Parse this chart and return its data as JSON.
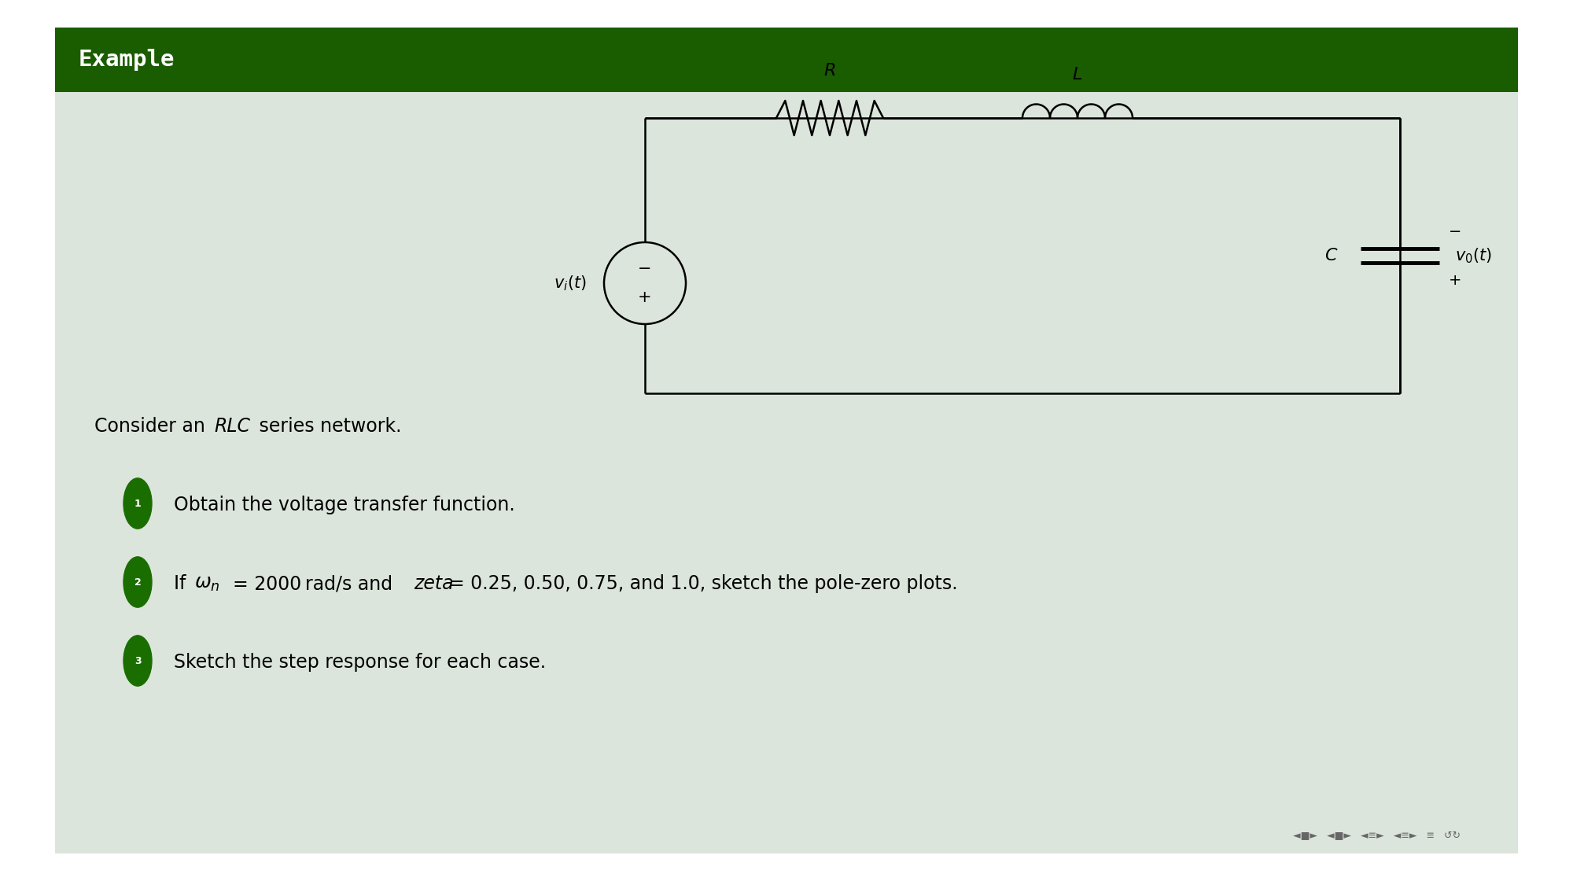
{
  "title": "Example",
  "title_bg": "#1a5c00",
  "title_fg": "#ffffff",
  "slide_bg": "#dce5dc",
  "outer_bg": "#ffffff",
  "body_text_color": "#000000",
  "bullet_color": "#1a6e00",
  "line_color": "#000000",
  "line_width": 1.8,
  "font_size_title": 21,
  "font_size_body": 17,
  "font_size_bullet": 17,
  "font_size_circuit": 15,
  "bullet1": "Obtain the voltage transfer function.",
  "bullet3": "Sketch the step response for each case."
}
